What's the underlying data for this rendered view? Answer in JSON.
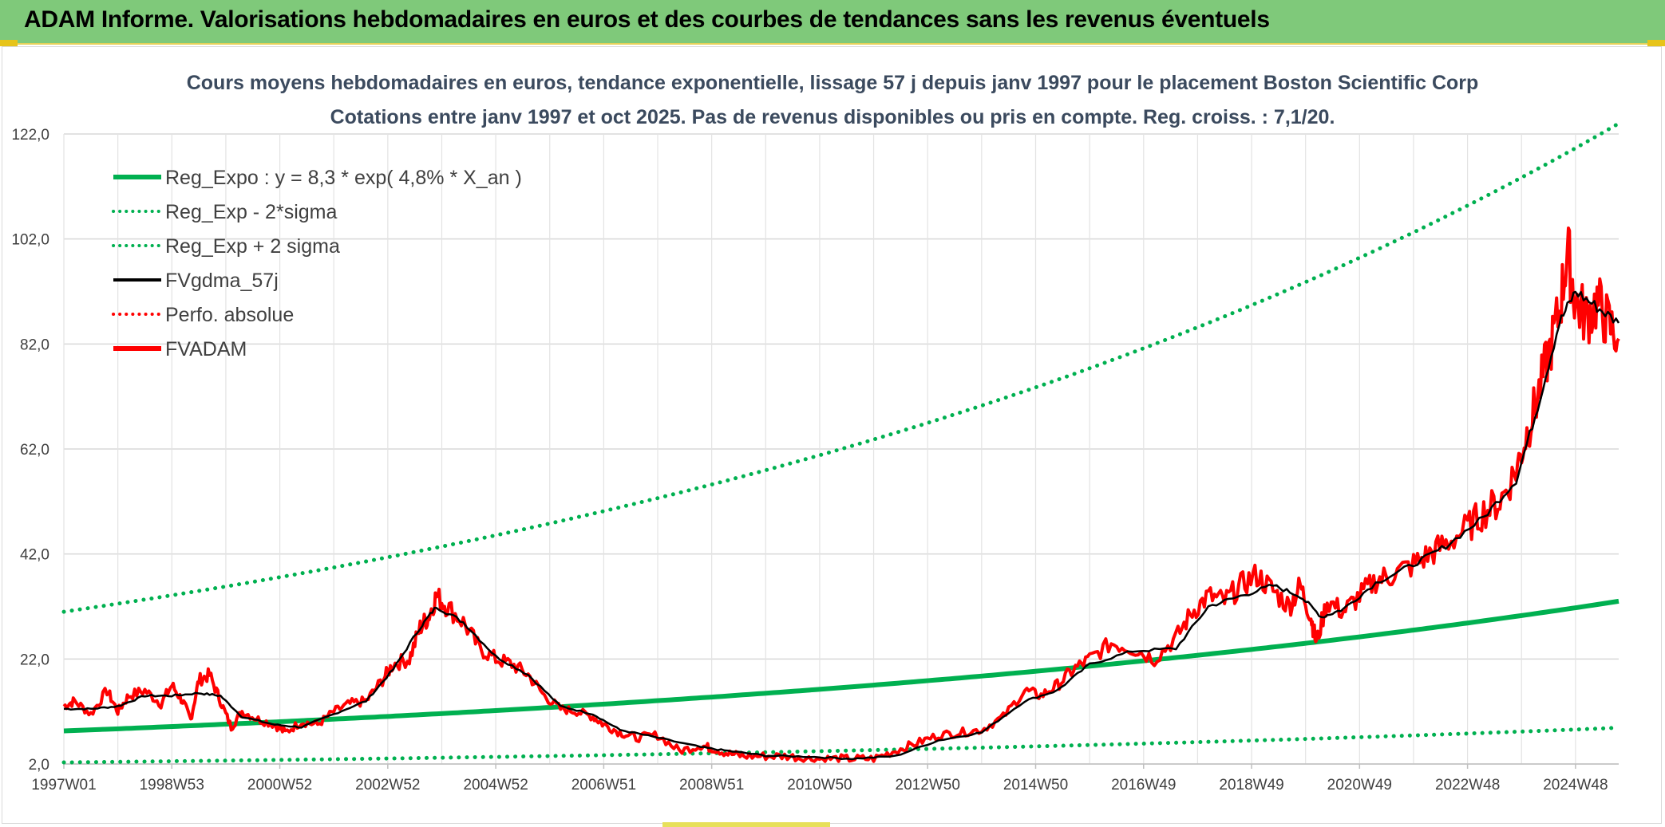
{
  "header": {
    "title": "ADAM Informe. Valorisations hebdomadaires en euros et des courbes de tendances sans les revenus éventuels"
  },
  "chart_data": {
    "type": "line",
    "title_line1": "Cours moyens hebdomadaires en euros, tendance exponentielle, lissage 57 j depuis janv 1997 pour le placement Boston Scientific Corp",
    "title_line2": "Cotations entre janv 1997 et oct 2025. Pas de revenus disponibles ou pris en compte. Reg. croiss. : 7,1/20.",
    "x_start_year": 1997.0,
    "x_end_year": 2025.8,
    "ylim": [
      2.0,
      122.0
    ],
    "y_ticks": [
      "2,0",
      "22,0",
      "42,0",
      "62,0",
      "82,0",
      "102,0",
      "122,0"
    ],
    "y_tick_values": [
      2,
      22,
      42,
      62,
      82,
      102,
      122
    ],
    "x_ticks": [
      "1997W01",
      "1998W53",
      "2000W52",
      "2002W52",
      "2004W52",
      "2006W51",
      "2008W51",
      "2010W50",
      "2012W50",
      "2014W50",
      "2016W49",
      "2018W49",
      "2020W49",
      "2022W48",
      "2024W48"
    ],
    "x_tick_years": [
      1997.0,
      1999.0,
      2001.0,
      2003.0,
      2005.0,
      2007.0,
      2009.0,
      2011.0,
      2013.0,
      2015.0,
      2017.0,
      2019.0,
      2021.0,
      2023.0,
      2025.0
    ],
    "legend": [
      {
        "name": "Reg_Expo : y = 8,3 * exp( 4,8% *  X_an )",
        "color": "#00b050",
        "style": "solid-thick"
      },
      {
        "name": "Reg_Exp - 2*sigma",
        "color": "#00b050",
        "style": "dotted"
      },
      {
        "name": "Reg_Exp + 2 sigma",
        "color": "#00b050",
        "style": "dotted"
      },
      {
        "name": "FVgdma_57j",
        "color": "#000000",
        "style": "solid"
      },
      {
        "name": "Perfo. absolue",
        "color": "#ff0000",
        "style": "dotted"
      },
      {
        "name": "FVADAM",
        "color": "#ff0000",
        "style": "solid-thick"
      }
    ],
    "series": [
      {
        "name": "Reg_Expo",
        "start_value": 8.3,
        "end_value": 33.0
      },
      {
        "name": "Reg_Exp - 2*sigma",
        "start_value": 2.3,
        "end_value": 8.9
      },
      {
        "name": "Reg_Exp + 2 sigma",
        "start_value": 31.0,
        "end_value": 124.0
      },
      {
        "name": "FVADAM",
        "x": [
          1997.0,
          1997.2,
          1997.5,
          1997.8,
          1998.0,
          1998.2,
          1998.5,
          1998.8,
          1999.0,
          1999.2,
          1999.35,
          1999.5,
          1999.7,
          1999.9,
          2000.1,
          2000.3,
          2000.6,
          2000.9,
          2001.1,
          2001.4,
          2001.7,
          2002.0,
          2002.3,
          2002.6,
          2002.9,
          2003.1,
          2003.4,
          2003.6,
          2003.75,
          2003.9,
          2004.1,
          2004.4,
          2004.7,
          2005.0,
          2005.3,
          2005.6,
          2005.9,
          2006.2,
          2006.5,
          2006.8,
          2007.0,
          2007.3,
          2007.6,
          2008.0,
          2008.4,
          2008.8,
          2009.0,
          2009.3,
          2009.6,
          2010.0,
          2010.4,
          2010.8,
          2011.2,
          2011.6,
          2012.0,
          2012.4,
          2012.8,
          2013.2,
          2013.6,
          2014.0,
          2014.4,
          2014.8,
          2015.1,
          2015.4,
          2015.7,
          2016.0,
          2016.4,
          2016.8,
          2017.2,
          2017.6,
          2017.9,
          2018.2,
          2018.5,
          2018.8,
          2019.1,
          2019.4,
          2019.7,
          2019.9,
          2020.1,
          2020.2,
          2020.4,
          2020.7,
          2021.0,
          2021.3,
          2021.6,
          2022.0,
          2022.3,
          2022.6,
          2023.0,
          2023.3,
          2023.6,
          2023.9,
          2024.1,
          2024.3,
          2024.5,
          2024.7,
          2024.85,
          2025.0,
          2025.2,
          2025.4,
          2025.6,
          2025.8
        ],
        "values": [
          13.0,
          14.0,
          11.5,
          16.0,
          12.0,
          15.0,
          16.0,
          13.5,
          17.0,
          14.0,
          10.5,
          18.0,
          19.0,
          14.0,
          9.0,
          12.0,
          10.5,
          9.5,
          8.0,
          10.0,
          9.5,
          12.0,
          13.5,
          14.0,
          18.0,
          21.0,
          22.0,
          28.0,
          30.0,
          34.0,
          32.0,
          29.0,
          24.0,
          22.0,
          21.0,
          19.0,
          15.0,
          12.5,
          12.0,
          11.0,
          9.5,
          8.0,
          7.0,
          7.5,
          4.5,
          5.5,
          5.0,
          4.0,
          3.5,
          3.5,
          3.5,
          3.0,
          3.0,
          3.0,
          3.0,
          4.5,
          6.0,
          7.5,
          8.0,
          8.5,
          11.0,
          16.0,
          15.0,
          17.0,
          20.0,
          22.0,
          25.0,
          24.0,
          22.0,
          26.0,
          31.0,
          34.0,
          33.0,
          36.0,
          38.0,
          35.0,
          32.0,
          36.0,
          30.0,
          25.0,
          33.0,
          31.0,
          34.0,
          37.0,
          38.0,
          40.0,
          42.0,
          44.0,
          47.0,
          50.0,
          52.0,
          58.0,
          65.0,
          72.0,
          80.0,
          88.0,
          100.0,
          90.0,
          87.0,
          90.0,
          86.0,
          83.0
        ]
      },
      {
        "name": "FVgdma_57j",
        "x": [
          1997.0,
          1997.5,
          1998.0,
          1998.5,
          1999.0,
          1999.5,
          1999.9,
          2000.3,
          2000.9,
          2001.4,
          2002.0,
          2002.6,
          2003.1,
          2003.6,
          2003.9,
          2004.4,
          2005.0,
          2005.6,
          2006.2,
          2006.8,
          2007.3,
          2008.0,
          2008.8,
          2009.3,
          2010.0,
          2010.8,
          2011.6,
          2012.4,
          2013.2,
          2014.0,
          2014.8,
          2015.4,
          2016.0,
          2016.8,
          2017.6,
          2018.2,
          2018.8,
          2019.4,
          2019.9,
          2020.3,
          2020.7,
          2021.3,
          2022.0,
          2022.6,
          2023.3,
          2023.9,
          2024.3,
          2024.7,
          2025.0,
          2025.4,
          2025.8
        ],
        "values": [
          12.5,
          12.5,
          13.0,
          15.0,
          15.0,
          15.5,
          15.0,
          11.0,
          9.5,
          9.0,
          11.5,
          14.0,
          20.0,
          28.0,
          32.0,
          29.0,
          22.5,
          19.0,
          13.0,
          11.5,
          8.5,
          7.0,
          5.2,
          4.5,
          3.6,
          3.4,
          3.0,
          3.5,
          6.5,
          8.0,
          14.0,
          16.0,
          21.0,
          23.5,
          24.0,
          32.0,
          34.0,
          36.0,
          34.0,
          30.0,
          31.5,
          36.5,
          40.0,
          43.5,
          49.0,
          56.0,
          70.0,
          86.0,
          92.0,
          89.0,
          86.0
        ]
      }
    ]
  }
}
